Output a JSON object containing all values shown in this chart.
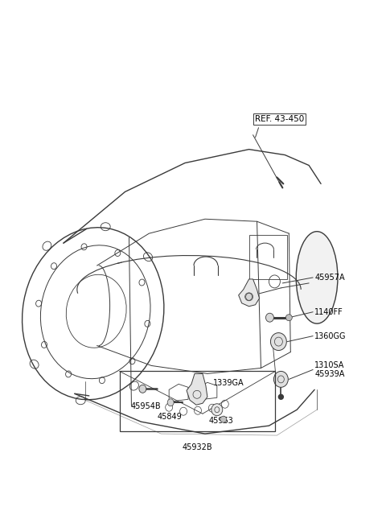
{
  "bg_color": "#ffffff",
  "line_color": "#3a3a3a",
  "text_color": "#000000",
  "fig_width": 4.8,
  "fig_height": 6.55,
  "dpi": 100,
  "label_fontsize": 7.0,
  "ref_label": "REF. 43-450",
  "parts": [
    "45957A",
    "1140FF",
    "1360GG",
    "1339GA",
    "45954B",
    "45849",
    "45963",
    "45932B",
    "1310SA",
    "45939A"
  ]
}
